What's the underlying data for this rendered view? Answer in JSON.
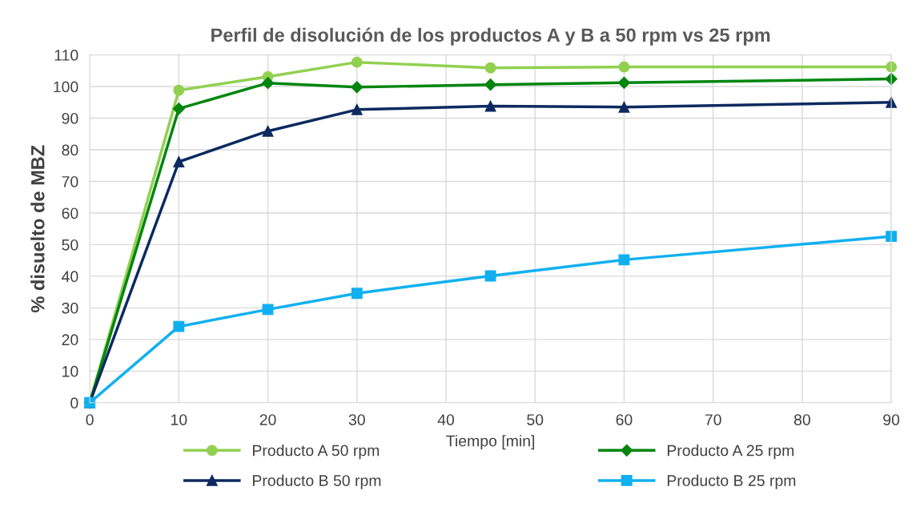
{
  "chart_data": {
    "type": "line",
    "title": "Perfil de disolución de los productos A y B a 50 rpm vs 25 rpm",
    "xlabel": "Tiempo [min]",
    "ylabel": "% disuelto de MBZ",
    "x": [
      0,
      10,
      20,
      30,
      45,
      60,
      90
    ],
    "series": [
      {
        "name": "Producto A 50 rpm",
        "color": "#92d050",
        "marker": "circle",
        "values": [
          0,
          98.8,
          103.1,
          107.7,
          105.9,
          106.2,
          106.2
        ]
      },
      {
        "name": "Producto A 25 rpm",
        "color": "#00860f",
        "marker": "diamond",
        "values": [
          0,
          93.0,
          101.1,
          99.8,
          100.6,
          101.2,
          102.4
        ]
      },
      {
        "name": "Producto B 50 rpm",
        "color": "#0d2a60",
        "marker": "triangle",
        "values": [
          0,
          76.2,
          85.9,
          92.7,
          93.8,
          93.5,
          95.0
        ]
      },
      {
        "name": "Producto B 25 rpm",
        "color": "#10b0f0",
        "marker": "square",
        "values": [
          0,
          24.1,
          29.5,
          34.6,
          40.1,
          45.2,
          52.6
        ]
      }
    ],
    "xlim": [
      0,
      90
    ],
    "xticks": [
      0,
      10,
      20,
      30,
      40,
      50,
      60,
      70,
      80,
      90
    ],
    "ylim": [
      0,
      110
    ],
    "yticks": [
      0,
      10,
      20,
      30,
      40,
      50,
      60,
      70,
      80,
      90,
      100,
      110
    ],
    "grid": true,
    "legend": "bottom",
    "line_style": "solid"
  }
}
